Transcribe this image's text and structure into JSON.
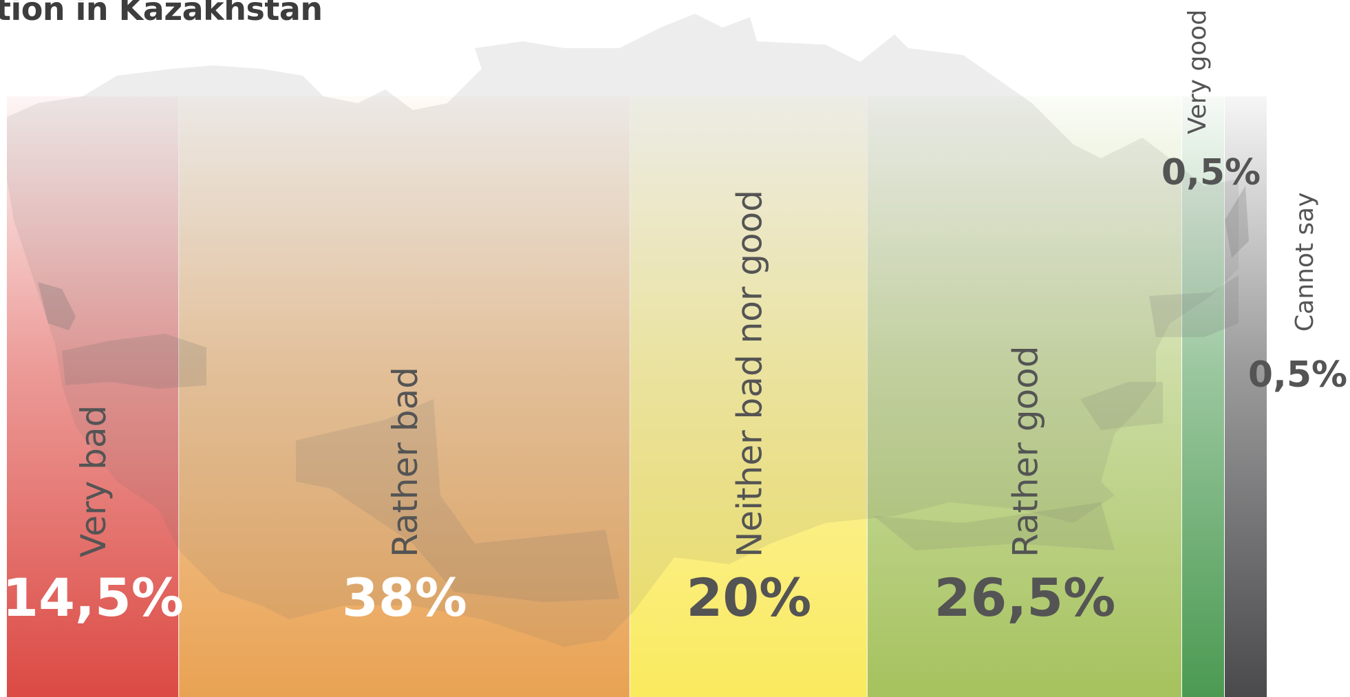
{
  "title": "tion in Kazakhstan",
  "colors": {
    "very_bad": "#dc4a44",
    "rather_bad": "#e9a253",
    "neither": "#faea5e",
    "rather_good": "#a5c25d",
    "very_good": "#4b9a52",
    "cannot_say": "#4a4a4c",
    "label_dark": "#545454",
    "label_light": "#ffffff"
  },
  "chart_data": {
    "type": "bar",
    "orientation": "stacked-100",
    "title": "tion in Kazakhstan",
    "categories": [
      "Very bad",
      "Rather bad",
      "Neither bad nor good",
      "Rather good",
      "Very good",
      "Cannot say"
    ],
    "values": [
      14.5,
      38,
      20,
      26.5,
      0.5,
      0.5
    ],
    "value_labels": [
      "14,5%",
      "38%",
      "20%",
      "26,5%",
      "0,5%",
      "0,5%"
    ],
    "unit": "%",
    "legend": "none",
    "grid": false
  }
}
